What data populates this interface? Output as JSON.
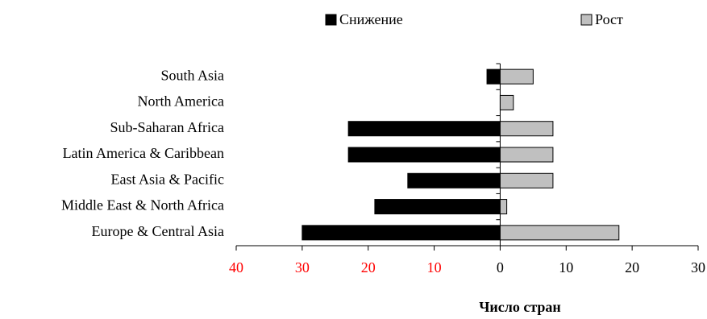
{
  "chart_data": {
    "type": "diverging-bar",
    "x_label": "Число стран",
    "categories": [
      "South Asia",
      "North America",
      "Sub-Saharan Africa",
      "Latin America & Caribbean",
      "East Asia & Pacific",
      "Middle East & North Africa",
      "Europe & Central Asia"
    ],
    "series": [
      {
        "name": "Снижение",
        "color": "#000000",
        "values": [
          -2,
          0,
          -23,
          -23,
          -14,
          -19,
          -30
        ]
      },
      {
        "name": "Рост",
        "color": "#c0c0c0",
        "values": [
          5,
          2,
          8,
          8,
          8,
          1,
          18
        ]
      }
    ],
    "xlim": [
      -40,
      30
    ],
    "xticks": [
      {
        "value": -40,
        "label": "40"
      },
      {
        "value": -30,
        "label": "30"
      },
      {
        "value": -20,
        "label": "20"
      },
      {
        "value": -10,
        "label": "10"
      },
      0,
      10,
      20,
      30
    ],
    "negative_tick_color": "#ff0000",
    "legend": "top"
  }
}
